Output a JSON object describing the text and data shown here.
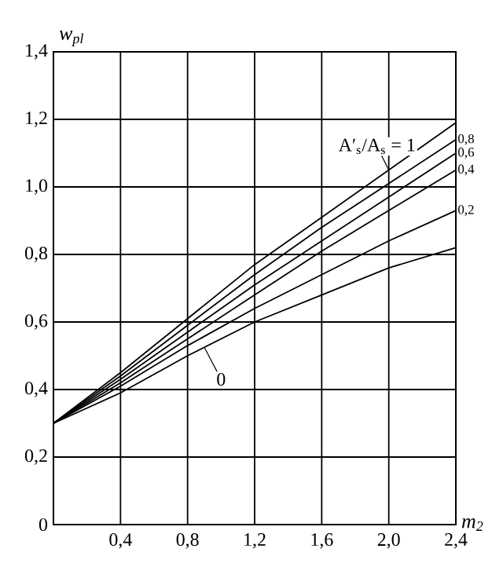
{
  "chart_data": {
    "type": "line",
    "xlabel": "m$_{2}$",
    "ylabel": "w$_{pl}$",
    "x": [
      0,
      0.4,
      0.8,
      1.2,
      1.6,
      2.0,
      2.4
    ],
    "series": [
      {
        "name": "A′$_{s}$/A$_{s}$ = 1",
        "color": "#000000",
        "values": [
          0.3,
          0.45,
          0.61,
          0.77,
          0.91,
          1.05,
          1.19
        ]
      },
      {
        "name": "0,8",
        "color": "#000000",
        "values": [
          0.3,
          0.44,
          0.59,
          0.74,
          0.88,
          1.01,
          1.14
        ]
      },
      {
        "name": "0,6",
        "color": "#000000",
        "values": [
          0.3,
          0.43,
          0.57,
          0.71,
          0.84,
          0.97,
          1.1
        ]
      },
      {
        "name": "0,4",
        "color": "#000000",
        "values": [
          0.3,
          0.42,
          0.55,
          0.68,
          0.81,
          0.93,
          1.05
        ]
      },
      {
        "name": "0,2",
        "color": "#000000",
        "values": [
          0.3,
          0.41,
          0.53,
          0.64,
          0.74,
          0.84,
          0.93
        ]
      },
      {
        "name": "0",
        "color": "#000000",
        "values": [
          0.3,
          0.39,
          0.5,
          0.6,
          0.68,
          0.76,
          0.82
        ]
      }
    ],
    "xlim": [
      0,
      2.4
    ],
    "ylim": [
      0,
      1.4
    ],
    "xticks": [
      {
        "value": 0.4,
        "label": "0,4"
      },
      {
        "value": 0.8,
        "label": "0,8"
      },
      {
        "value": 1.2,
        "label": "1,2"
      },
      {
        "value": 1.6,
        "label": "1,6"
      },
      {
        "value": 2.0,
        "label": "2,0"
      },
      {
        "value": 2.4,
        "label": "2,4"
      }
    ],
    "yticks": [
      0,
      {
        "value": 0.2,
        "label": "0,2"
      },
      {
        "value": 0.4,
        "label": "0,4"
      },
      {
        "value": 0.6,
        "label": "0,6"
      },
      {
        "value": 0.8,
        "label": "0,8"
      },
      {
        "value": 1.0,
        "label": "1,0"
      },
      {
        "value": 1.2,
        "label": "1,2"
      },
      {
        "value": 1.4,
        "label": "1,4"
      }
    ],
    "grid": true,
    "marker": "none",
    "line_style": "solid"
  }
}
